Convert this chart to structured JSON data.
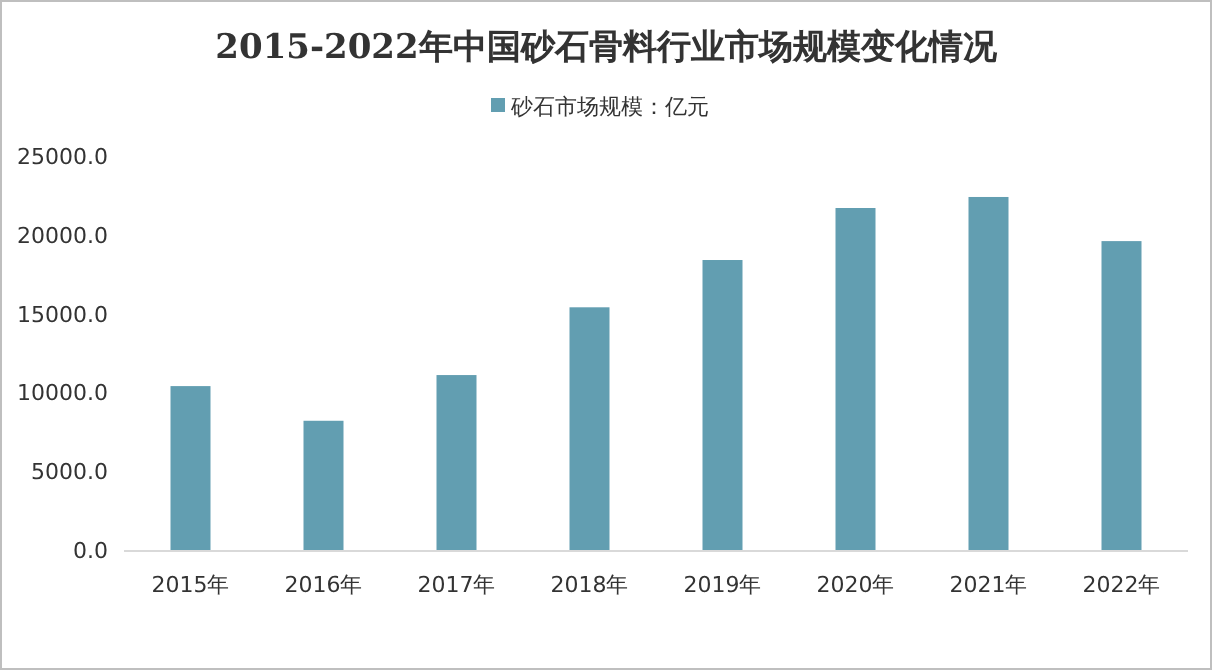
{
  "chart_data": {
    "type": "bar",
    "title": "2015-2022年中国砂石骨料行业市场规模变化情况",
    "categories": [
      "2015年",
      "2016年",
      "2017年",
      "2018年",
      "2019年",
      "2020年",
      "2021年",
      "2022年"
    ],
    "series": [
      {
        "name": "砂石市场规模：亿元",
        "color": "#629eb1",
        "values": [
          10400,
          8200,
          11100,
          15400,
          18400,
          21700,
          22400,
          19600
        ]
      }
    ],
    "ylim": [
      0,
      25000
    ],
    "yticks": [
      {
        "value": 0,
        "label": "0.0"
      },
      {
        "value": 5000,
        "label": "5000.0"
      },
      {
        "value": 10000,
        "label": "10000.0"
      },
      {
        "value": 15000,
        "label": "15000.0"
      },
      {
        "value": 20000,
        "label": "20000.0"
      },
      {
        "value": 25000,
        "label": "25000.0"
      }
    ],
    "grid": false,
    "legend": "top"
  }
}
